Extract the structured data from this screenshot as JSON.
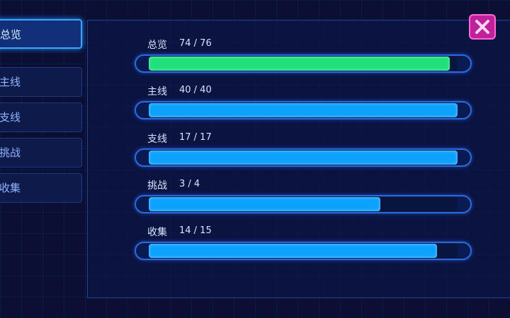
{
  "tabs": [
    {
      "label": "总览",
      "selected": true
    },
    {
      "label": "主线",
      "selected": false
    },
    {
      "label": "支线",
      "selected": false
    },
    {
      "label": "挑战",
      "selected": false
    },
    {
      "label": "收集",
      "selected": false
    }
  ],
  "rows": [
    {
      "name": "总览",
      "current": 74,
      "total": 76,
      "value_label": "74 / 76",
      "color": "#1fe07a"
    },
    {
      "name": "主线",
      "current": 40,
      "total": 40,
      "value_label": "40 / 40",
      "color": "#0ea2ff"
    },
    {
      "name": "支线",
      "current": 17,
      "total": 17,
      "value_label": "17 / 17",
      "color": "#0ea2ff"
    },
    {
      "name": "挑战",
      "current": 3,
      "total": 4,
      "value_label": "3 / 4",
      "color": "#0ea2ff"
    },
    {
      "name": "收集",
      "current": 14,
      "total": 15,
      "value_label": "14 / 15",
      "color": "#0ea2ff"
    }
  ]
}
